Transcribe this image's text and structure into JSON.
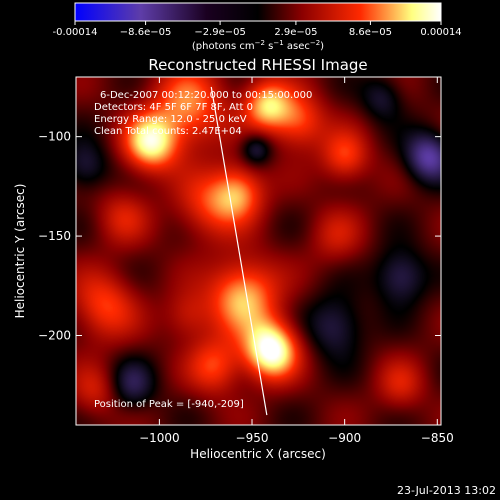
{
  "colorbar": {
    "ticks": [
      "-0.00014",
      "−8.6e−05",
      "−2.9e−05",
      "2.9e−05",
      "8.6e−05",
      "0.00014"
    ],
    "tick_values": [
      -0.00014,
      -8.6e-05,
      -2.9e-05,
      2.9e-05,
      8.6e-05,
      0.00014
    ],
    "units_main": "(photons cm",
    "units_sup1": "−2",
    "units_mid1": " s",
    "units_sup2": "−1",
    "units_mid2": " asec",
    "units_sup3": "−2",
    "units_end": ")",
    "range": [
      -0.00014,
      0.00014
    ]
  },
  "annotations": {
    "time_range": "6-Dec-2007 00:12:20.000 to 00:15:00.000",
    "detectors": "Detectors: 4F 5F 6F 7F 8F, Att 0",
    "energy": "Energy Range: 12.0 - 25.0 keV",
    "clean": "Clean    Total counts: 2.47E+04",
    "peak": "Position of Peak = [-940,-209]"
  },
  "footer": {
    "timestamp": "23-Jul-2013 13:02"
  },
  "chart_data": {
    "type": "heatmap",
    "title": "Reconstructed RHESSI Image",
    "xlabel": "Heliocentric X (arcsec)",
    "ylabel": "Heliocentric Y (arcsec)",
    "xlim": [
      -1045,
      -848
    ],
    "ylim": [
      -245,
      -70
    ],
    "x_ticks": [
      -1000,
      -950,
      -900,
      -850
    ],
    "x_tick_labels": [
      "−1000",
      "−950",
      "−900",
      "−850"
    ],
    "y_ticks": [
      -100,
      -150,
      -200
    ],
    "y_tick_labels": [
      "−100",
      "−150",
      "−200"
    ],
    "peak": [
      -940,
      -209
    ],
    "colormap": [
      "#0000ff",
      "#5e3da8",
      "#000000",
      "#8b0000",
      "#ff2a00",
      "#ffff80",
      "#ffffff"
    ],
    "blobs": [
      {
        "x": -1005,
        "y": -103,
        "amp": 1.0,
        "s": 10
      },
      {
        "x": -985,
        "y": -85,
        "amp": 0.7,
        "s": 14
      },
      {
        "x": -958,
        "y": -128,
        "amp": 0.75,
        "s": 10
      },
      {
        "x": -975,
        "y": -135,
        "amp": 0.45,
        "s": 12
      },
      {
        "x": -942,
        "y": -84,
        "amp": 0.85,
        "s": 9
      },
      {
        "x": -925,
        "y": -92,
        "amp": 0.6,
        "s": 10
      },
      {
        "x": -955,
        "y": -180,
        "amp": 0.85,
        "s": 13
      },
      {
        "x": -940,
        "y": -207,
        "amp": 1.25,
        "s": 10
      },
      {
        "x": -970,
        "y": -215,
        "amp": 0.55,
        "s": 10
      },
      {
        "x": -985,
        "y": -190,
        "amp": 0.35,
        "s": 9
      },
      {
        "x": -1030,
        "y": -185,
        "amp": 0.55,
        "s": 12
      },
      {
        "x": -1035,
        "y": -228,
        "amp": 0.35,
        "s": 9
      },
      {
        "x": -1020,
        "y": -140,
        "amp": 0.35,
        "s": 10
      },
      {
        "x": -900,
        "y": -110,
        "amp": 0.55,
        "s": 9
      },
      {
        "x": -905,
        "y": -150,
        "amp": 0.3,
        "s": 10
      },
      {
        "x": -870,
        "y": -225,
        "amp": 0.35,
        "s": 9
      },
      {
        "x": -855,
        "y": -110,
        "amp": -0.7,
        "s": 9
      },
      {
        "x": -870,
        "y": -170,
        "amp": -0.5,
        "s": 10
      },
      {
        "x": -905,
        "y": -195,
        "amp": -0.45,
        "s": 11
      },
      {
        "x": -948,
        "y": -106,
        "amp": -0.45,
        "s": 6
      },
      {
        "x": -1015,
        "y": -225,
        "amp": -0.4,
        "s": 9
      },
      {
        "x": -1040,
        "y": -115,
        "amp": -0.4,
        "s": 9
      },
      {
        "x": -880,
        "y": -80,
        "amp": -0.35,
        "s": 8
      }
    ],
    "limb_curve": [
      [
        -972,
        -75
      ],
      [
        -962,
        -130
      ],
      [
        -952,
        -185
      ],
      [
        -942,
        -240
      ]
    ]
  }
}
